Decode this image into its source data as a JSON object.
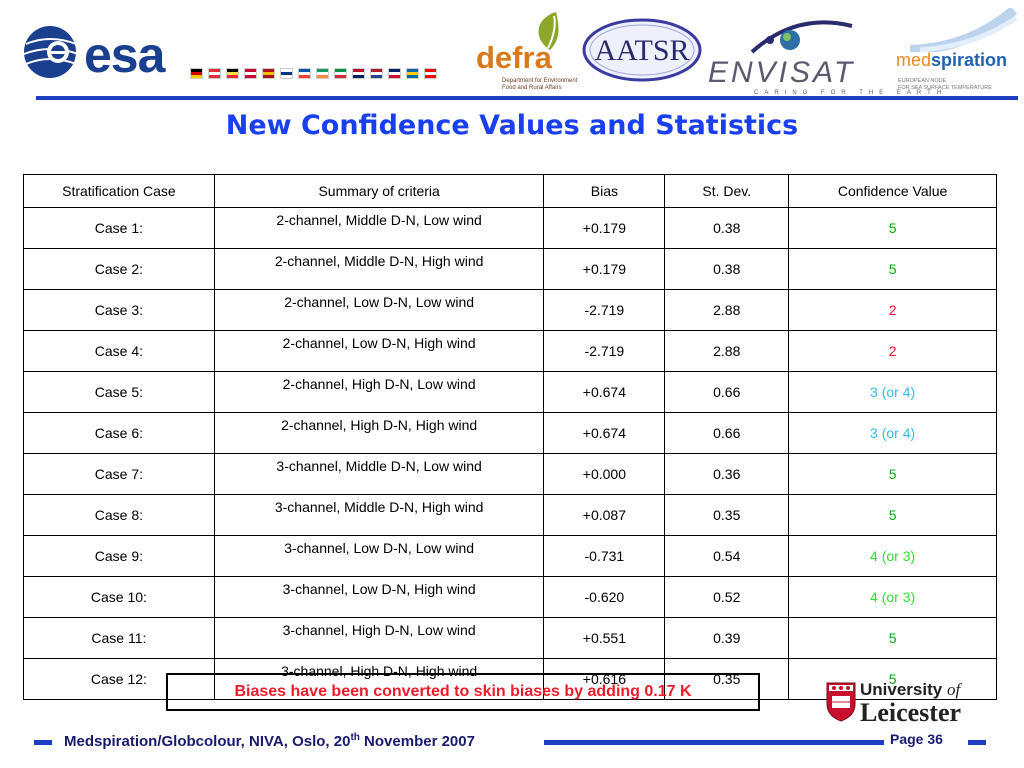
{
  "header": {
    "logos": {
      "esa": "esa",
      "defra": "defra",
      "defra_sub": "Department for Environment Food and Rural Affairs",
      "aatsr": "AATSR",
      "envisat": "ENVISAT",
      "envisat_tag": "CARING FOR THE EARTH",
      "medspiration_a": "med",
      "medspiration_b": "spiration",
      "medspiration_sub1": "EUROPEAN NODE",
      "medspiration_sub2": "FOR SEA SURFACE TEMPERATURE"
    },
    "flag_colors": [
      [
        "#000000",
        "#dd0000",
        "#ffce00"
      ],
      [
        "#ed2939",
        "#ffffff",
        "#ed2939"
      ],
      [
        "#000000",
        "#fae042",
        "#ed2939"
      ],
      [
        "#c60c30",
        "#ffffff",
        "#c60c30"
      ],
      [
        "#aa151b",
        "#f1bf00",
        "#aa151b"
      ],
      [
        "#ffffff",
        "#003580",
        "#ffffff"
      ],
      [
        "#0055a4",
        "#ffffff",
        "#ef4135"
      ],
      [
        "#169b62",
        "#ffffff",
        "#ff883e"
      ],
      [
        "#009246",
        "#ffffff",
        "#ce2b37"
      ],
      [
        "#ba0c2f",
        "#ffffff",
        "#00205b"
      ],
      [
        "#ae1c28",
        "#ffffff",
        "#21468b"
      ],
      [
        "#012169",
        "#ffffff",
        "#c8102e"
      ],
      [
        "#006aa7",
        "#fecc00",
        "#006aa7"
      ],
      [
        "#ff0000",
        "#ffffff",
        "#ff0000"
      ]
    ]
  },
  "title": "New Confidence Values and Statistics",
  "table": {
    "headers": [
      "Stratification Case",
      "Summary of criteria",
      "Bias",
      "St. Dev.",
      "Confidence Value"
    ],
    "rows": [
      {
        "case": "Case 1:",
        "summary": "2-channel, Middle D-N, Low wind",
        "bias": "+0.179",
        "stdev": "0.38",
        "confidence": "5",
        "cv_class": "cv-green"
      },
      {
        "case": "Case 2:",
        "summary": "2-channel, Middle D-N, High wind",
        "bias": "+0.179",
        "stdev": "0.38",
        "confidence": "5",
        "cv_class": "cv-green"
      },
      {
        "case": "Case 3:",
        "summary": "2-channel, Low D-N, Low wind",
        "bias": "-2.719",
        "stdev": "2.88",
        "confidence": "2",
        "cv_class": "cv-red"
      },
      {
        "case": "Case 4:",
        "summary": "2-channel, Low D-N, High wind",
        "bias": "-2.719",
        "stdev": "2.88",
        "confidence": "2",
        "cv_class": "cv-red"
      },
      {
        "case": "Case 5:",
        "summary": "2-channel, High D-N, Low wind",
        "bias": "+0.674",
        "stdev": "0.66",
        "confidence": "3 (or 4)",
        "cv_class": "cv-cyan"
      },
      {
        "case": "Case 6:",
        "summary": "2-channel, High D-N, High wind",
        "bias": "+0.674",
        "stdev": "0.66",
        "confidence": "3 (or 4)",
        "cv_class": "cv-cyan"
      },
      {
        "case": "Case 7:",
        "summary": "3-channel, Middle D-N, Low wind",
        "bias": "+0.000",
        "stdev": "0.36",
        "confidence": "5",
        "cv_class": "cv-green"
      },
      {
        "case": "Case 8:",
        "summary": "3-channel, Middle D-N, High wind",
        "bias": "+0.087",
        "stdev": "0.35",
        "confidence": "5",
        "cv_class": "cv-green"
      },
      {
        "case": "Case 9:",
        "summary": "3-channel, Low D-N, Low wind",
        "bias": "-0.731",
        "stdev": "0.54",
        "confidence": "4 (or 3)",
        "cv_class": "cv-lime"
      },
      {
        "case": "Case 10:",
        "summary": "3-channel, Low D-N, High wind",
        "bias": "-0.620",
        "stdev": "0.52",
        "confidence": "4 (or 3)",
        "cv_class": "cv-lime"
      },
      {
        "case": "Case 11:",
        "summary": "3-channel, High D-N, Low wind",
        "bias": "+0.551",
        "stdev": "0.39",
        "confidence": "5",
        "cv_class": "cv-green"
      },
      {
        "case": "Case 12:",
        "summary": "3-channel, High D-N, High wind",
        "bias": "+0.616",
        "stdev": "0.35",
        "confidence": "5",
        "cv_class": "cv-green"
      }
    ]
  },
  "note": "Biases have been converted to skin biases by adding 0.17 K",
  "leicester": {
    "line1": "University",
    "of": "of",
    "line2": "Leicester"
  },
  "footer": {
    "text_before": "Medspiration/Globcolour, NIVA, Oslo, 20",
    "sup": "th",
    "text_after": " November 2007",
    "page": "Page 36"
  }
}
